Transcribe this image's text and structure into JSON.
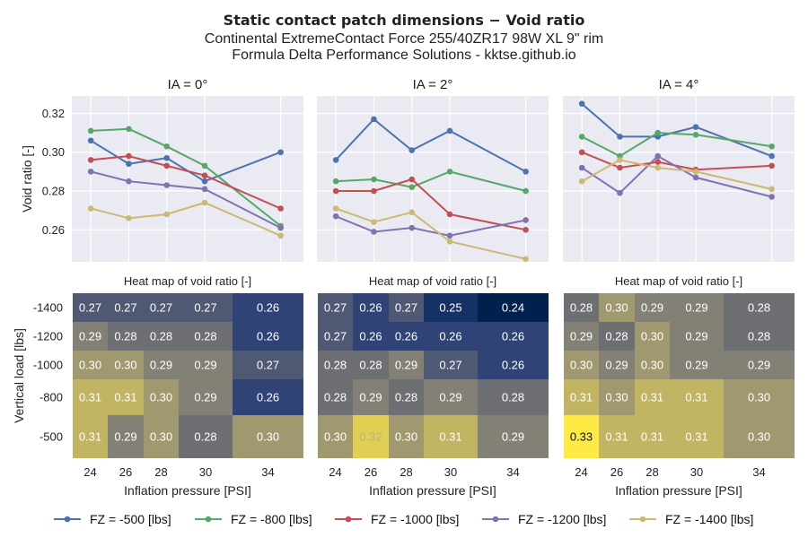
{
  "title": "Static contact patch dimensions  −  Void ratio",
  "subtitle1": "Continental ExtremeContact Force 255/40ZR17 98W XL 9\" rim",
  "subtitle2": "Formula Delta Performance Solutions - kktse.github.io",
  "colors": {
    "series": [
      "#4c72b0",
      "#55a868",
      "#c44e52",
      "#8172b2",
      "#ccb974"
    ],
    "panel_bg": "#eaeaf2",
    "grid": "#ffffff"
  },
  "chart_data": [
    {
      "type": "line",
      "title": "IA = 0°",
      "x": [
        24,
        26,
        28,
        30,
        34
      ],
      "xlim": [
        23,
        35.2
      ],
      "ylim": [
        0.2435,
        0.329
      ],
      "yticks": [
        0.26,
        0.28,
        0.3,
        0.32
      ],
      "ylabel": "Void ratio [-]",
      "xlabel": "",
      "grid": true,
      "series": [
        {
          "name": "FZ = -500 [lbs]",
          "values": [
            0.306,
            0.294,
            0.297,
            0.285,
            0.3
          ]
        },
        {
          "name": "FZ = -800 [lbs]",
          "values": [
            0.311,
            0.312,
            0.303,
            0.293,
            0.262
          ]
        },
        {
          "name": "FZ = -1000 [lbs]",
          "values": [
            0.296,
            0.298,
            0.293,
            0.288,
            0.271
          ]
        },
        {
          "name": "FZ = -1200 [lbs]",
          "values": [
            0.29,
            0.285,
            0.283,
            0.281,
            0.261
          ]
        },
        {
          "name": "FZ = -1400 [lbs]",
          "values": [
            0.271,
            0.266,
            0.268,
            0.274,
            0.257
          ]
        }
      ]
    },
    {
      "type": "line",
      "title": "IA = 2°",
      "x": [
        24,
        26,
        28,
        30,
        34
      ],
      "xlim": [
        23,
        35.2
      ],
      "ylim": [
        0.2435,
        0.329
      ],
      "yticks": [
        0.26,
        0.28,
        0.3,
        0.32
      ],
      "ylabel": "",
      "xlabel": "",
      "grid": true,
      "series": [
        {
          "name": "FZ = -500 [lbs]",
          "values": [
            0.296,
            0.317,
            0.301,
            0.311,
            0.29
          ]
        },
        {
          "name": "FZ = -800 [lbs]",
          "values": [
            0.285,
            0.286,
            0.282,
            0.29,
            0.28
          ]
        },
        {
          "name": "FZ = -1000 [lbs]",
          "values": [
            0.28,
            0.28,
            0.286,
            0.268,
            0.26
          ]
        },
        {
          "name": "FZ = -1200 [lbs]",
          "values": [
            0.267,
            0.259,
            0.261,
            0.257,
            0.265
          ]
        },
        {
          "name": "FZ = -1400 [lbs]",
          "values": [
            0.271,
            0.264,
            0.269,
            0.254,
            0.245
          ]
        }
      ]
    },
    {
      "type": "line",
      "title": "IA = 4°",
      "x": [
        24,
        26,
        28,
        30,
        34
      ],
      "xlim": [
        23,
        35.2
      ],
      "ylim": [
        0.2435,
        0.329
      ],
      "yticks": [
        0.26,
        0.28,
        0.3,
        0.32
      ],
      "ylabel": "",
      "xlabel": "",
      "grid": true,
      "series": [
        {
          "name": "FZ = -500 [lbs]",
          "values": [
            0.325,
            0.308,
            0.308,
            0.313,
            0.298
          ]
        },
        {
          "name": "FZ = -800 [lbs]",
          "values": [
            0.308,
            0.298,
            0.31,
            0.309,
            0.303
          ]
        },
        {
          "name": "FZ = -1000 [lbs]",
          "values": [
            0.3,
            0.292,
            0.295,
            0.291,
            0.293
          ]
        },
        {
          "name": "FZ = -1200 [lbs]",
          "values": [
            0.292,
            0.279,
            0.298,
            0.287,
            0.277
          ]
        },
        {
          "name": "FZ = -1400 [lbs]",
          "values": [
            0.285,
            0.296,
            0.292,
            0.29,
            0.281
          ]
        }
      ]
    },
    {
      "type": "heatmap",
      "title": "Heat map of void ratio [-]",
      "x": [
        24,
        26,
        28,
        30,
        34
      ],
      "y": [
        -1400,
        -1200,
        -1000,
        -800,
        -500
      ],
      "ylabel": "Vertical load [lbs]",
      "xlabel": "Inflation pressure [PSI]",
      "values": [
        [
          "0.27",
          "0.27",
          "0.27",
          "0.27",
          "0.26"
        ],
        [
          "0.29",
          "0.28",
          "0.28",
          "0.28",
          "0.26"
        ],
        [
          "0.30",
          "0.30",
          "0.29",
          "0.29",
          "0.27"
        ],
        [
          "0.31",
          "0.31",
          "0.30",
          "0.29",
          "0.26"
        ],
        [
          "0.31",
          "0.29",
          "0.30",
          "0.28",
          "0.30"
        ]
      ]
    },
    {
      "type": "heatmap",
      "title": "Heat map of void ratio [-]",
      "x": [
        24,
        26,
        28,
        30,
        34
      ],
      "y": [
        -1400,
        -1200,
        -1000,
        -800,
        -500
      ],
      "ylabel": "",
      "xlabel": "Inflation pressure [PSI]",
      "values": [
        [
          "0.27",
          "0.26",
          "0.27",
          "0.25",
          "0.24"
        ],
        [
          "0.27",
          "0.26",
          "0.26",
          "0.26",
          "0.26"
        ],
        [
          "0.28",
          "0.28",
          "0.29",
          "0.27",
          "0.26"
        ],
        [
          "0.28",
          "0.29",
          "0.28",
          "0.29",
          "0.28"
        ],
        [
          "0.30",
          "0.32",
          "0.30",
          "0.31",
          "0.29"
        ]
      ]
    },
    {
      "type": "heatmap",
      "title": "Heat map of void ratio [-]",
      "x": [
        24,
        26,
        28,
        30,
        34
      ],
      "y": [
        -1400,
        -1200,
        -1000,
        -800,
        -500
      ],
      "ylabel": "",
      "xlabel": "Inflation pressure [PSI]",
      "values": [
        [
          "0.28",
          "0.30",
          "0.29",
          "0.29",
          "0.28"
        ],
        [
          "0.29",
          "0.28",
          "0.30",
          "0.29",
          "0.28"
        ],
        [
          "0.30",
          "0.29",
          "0.30",
          "0.29",
          "0.29"
        ],
        [
          "0.31",
          "0.30",
          "0.31",
          "0.31",
          "0.30"
        ],
        [
          "0.33",
          "0.31",
          "0.31",
          "0.31",
          "0.30"
        ]
      ]
    }
  ],
  "legend": [
    "FZ = -500 [lbs]",
    "FZ = -800 [lbs]",
    "FZ = -1000 [lbs]",
    "FZ = -1200 [lbs]",
    "FZ = -1400 [lbs]"
  ]
}
